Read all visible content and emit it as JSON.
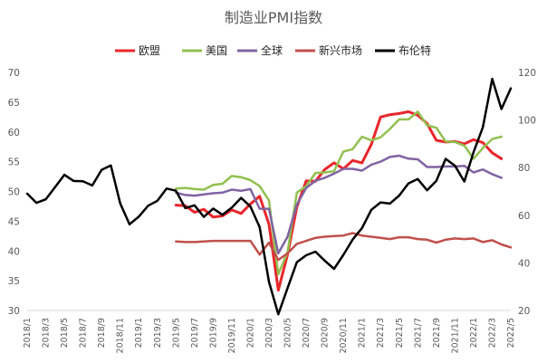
{
  "chart_data": {
    "type": "line",
    "title": "制造业PMI指数",
    "xlabel": "",
    "ylabel": "",
    "grid": false,
    "legend_position": "top",
    "axes": {
      "left": {
        "min": 30,
        "max": 70,
        "step": 5,
        "ticks": [
          "30",
          "35",
          "40",
          "45",
          "50",
          "55",
          "60",
          "65",
          "70"
        ]
      },
      "right": {
        "min": 20,
        "max": 120,
        "step": 20,
        "ticks": [
          "20",
          "40",
          "60",
          "80",
          "100",
          "120"
        ]
      }
    },
    "x_tick_labels": [
      "2018/1",
      "2018/3",
      "2018/5",
      "2018/7",
      "2018/9",
      "2018/11",
      "2019/1",
      "2019/3",
      "2019/5",
      "2019/7",
      "2019/9",
      "2019/11",
      "2020/1",
      "2020/3",
      "2020/5",
      "2020/7",
      "2020/9",
      "2020/11",
      "2021/1",
      "2021/3",
      "2021/5",
      "2021/7",
      "2021/9",
      "2021/11",
      "2022/1",
      "2022/3",
      "2022/5"
    ],
    "categories": [
      "2018/1",
      "2018/2",
      "2018/3",
      "2018/4",
      "2018/5",
      "2018/6",
      "2018/7",
      "2018/8",
      "2018/9",
      "2018/10",
      "2018/11",
      "2018/12",
      "2019/1",
      "2019/2",
      "2019/3",
      "2019/4",
      "2019/5",
      "2019/6",
      "2019/7",
      "2019/8",
      "2019/9",
      "2019/10",
      "2019/11",
      "2019/12",
      "2020/1",
      "2020/2",
      "2020/3",
      "2020/4",
      "2020/5",
      "2020/6",
      "2020/7",
      "2020/8",
      "2020/9",
      "2020/10",
      "2020/11",
      "2020/12",
      "2021/1",
      "2021/2",
      "2021/3",
      "2021/4",
      "2021/5",
      "2021/6",
      "2021/7",
      "2021/8",
      "2021/9",
      "2021/10",
      "2021/11",
      "2021/12",
      "2022/1",
      "2022/2",
      "2022/3",
      "2022/4",
      "2022/5"
    ],
    "series": [
      {
        "name": "欧盟",
        "axis": "left",
        "color": "#e8262b",
        "width": 3,
        "values": [
          null,
          null,
          null,
          null,
          null,
          null,
          null,
          null,
          null,
          null,
          null,
          null,
          null,
          null,
          null,
          null,
          47.7,
          47.6,
          46.5,
          47.0,
          45.7,
          45.9,
          46.9,
          46.3,
          47.9,
          49.2,
          44.5,
          33.4,
          39.4,
          47.4,
          51.8,
          51.7,
          53.7,
          54.8,
          53.8,
          55.2,
          54.8,
          57.9,
          62.5,
          62.9,
          63.1,
          63.4,
          62.8,
          61.4,
          58.6,
          58.3,
          58.4,
          58.0,
          58.7,
          58.2,
          56.5,
          55.5,
          null
        ]
      },
      {
        "name": "美国",
        "axis": "left",
        "color": "#92c050",
        "width": 2.5,
        "values": [
          null,
          null,
          null,
          null,
          null,
          null,
          null,
          null,
          null,
          null,
          null,
          null,
          null,
          null,
          null,
          null,
          50.5,
          50.6,
          50.4,
          50.3,
          51.1,
          51.3,
          52.6,
          52.4,
          51.9,
          50.9,
          48.5,
          36.1,
          39.8,
          49.8,
          50.9,
          53.1,
          53.2,
          53.4,
          56.7,
          57.1,
          59.2,
          58.6,
          59.1,
          60.5,
          62.1,
          62.1,
          63.4,
          61.1,
          60.7,
          58.4,
          58.3,
          57.7,
          55.5,
          57.3,
          58.8,
          59.2,
          null
        ]
      },
      {
        "name": "全球",
        "axis": "left",
        "color": "#8064a2",
        "width": 2.5,
        "values": [
          null,
          null,
          null,
          null,
          null,
          null,
          null,
          null,
          null,
          null,
          null,
          null,
          null,
          null,
          null,
          null,
          49.8,
          49.4,
          49.3,
          49.5,
          49.7,
          49.8,
          50.3,
          50.1,
          50.4,
          47.1,
          47.1,
          39.6,
          42.4,
          47.8,
          50.6,
          51.8,
          52.3,
          53.0,
          53.8,
          53.8,
          53.5,
          54.5,
          55.0,
          55.8,
          56.0,
          55.5,
          55.4,
          54.1,
          54.1,
          54.2,
          54.2,
          54.3,
          53.2,
          53.7,
          52.9,
          52.3,
          null
        ]
      },
      {
        "name": "新兴市场",
        "axis": "left",
        "color": "#c0504d",
        "width": 2.5,
        "values": [
          null,
          null,
          null,
          null,
          null,
          null,
          null,
          null,
          null,
          null,
          null,
          null,
          null,
          null,
          null,
          null,
          41.6,
          41.5,
          41.5,
          41.6,
          41.7,
          41.7,
          41.7,
          41.7,
          41.7,
          39.4,
          41.4,
          38.5,
          39.6,
          41.2,
          41.7,
          42.2,
          42.4,
          42.5,
          42.6,
          43.0,
          42.6,
          42.4,
          42.2,
          42.0,
          42.3,
          42.3,
          42.0,
          41.9,
          41.4,
          41.9,
          42.1,
          42.0,
          42.1,
          41.5,
          41.8,
          41.1,
          40.6
        ]
      },
      {
        "name": "布伦特",
        "axis": "right",
        "color": "#000000",
        "width": 2.5,
        "values": [
          69.1,
          65.2,
          66.7,
          71.8,
          77.0,
          74.4,
          74.3,
          72.5,
          79.1,
          80.9,
          65.0,
          56.2,
          59.4,
          64.0,
          66.1,
          71.2,
          70.3,
          63.0,
          64.2,
          59.3,
          62.8,
          60.2,
          63.2,
          67.3,
          63.7,
          55.0,
          32.0,
          18.4,
          29.4,
          40.3,
          43.2,
          44.7,
          40.9,
          37.5,
          43.4,
          49.8,
          54.6,
          62.3,
          65.4,
          64.9,
          68.3,
          73.4,
          75.2,
          70.5,
          74.5,
          83.7,
          80.8,
          74.2,
          86.5,
          97.0,
          117.3,
          104.6,
          113.3
        ]
      }
    ]
  }
}
